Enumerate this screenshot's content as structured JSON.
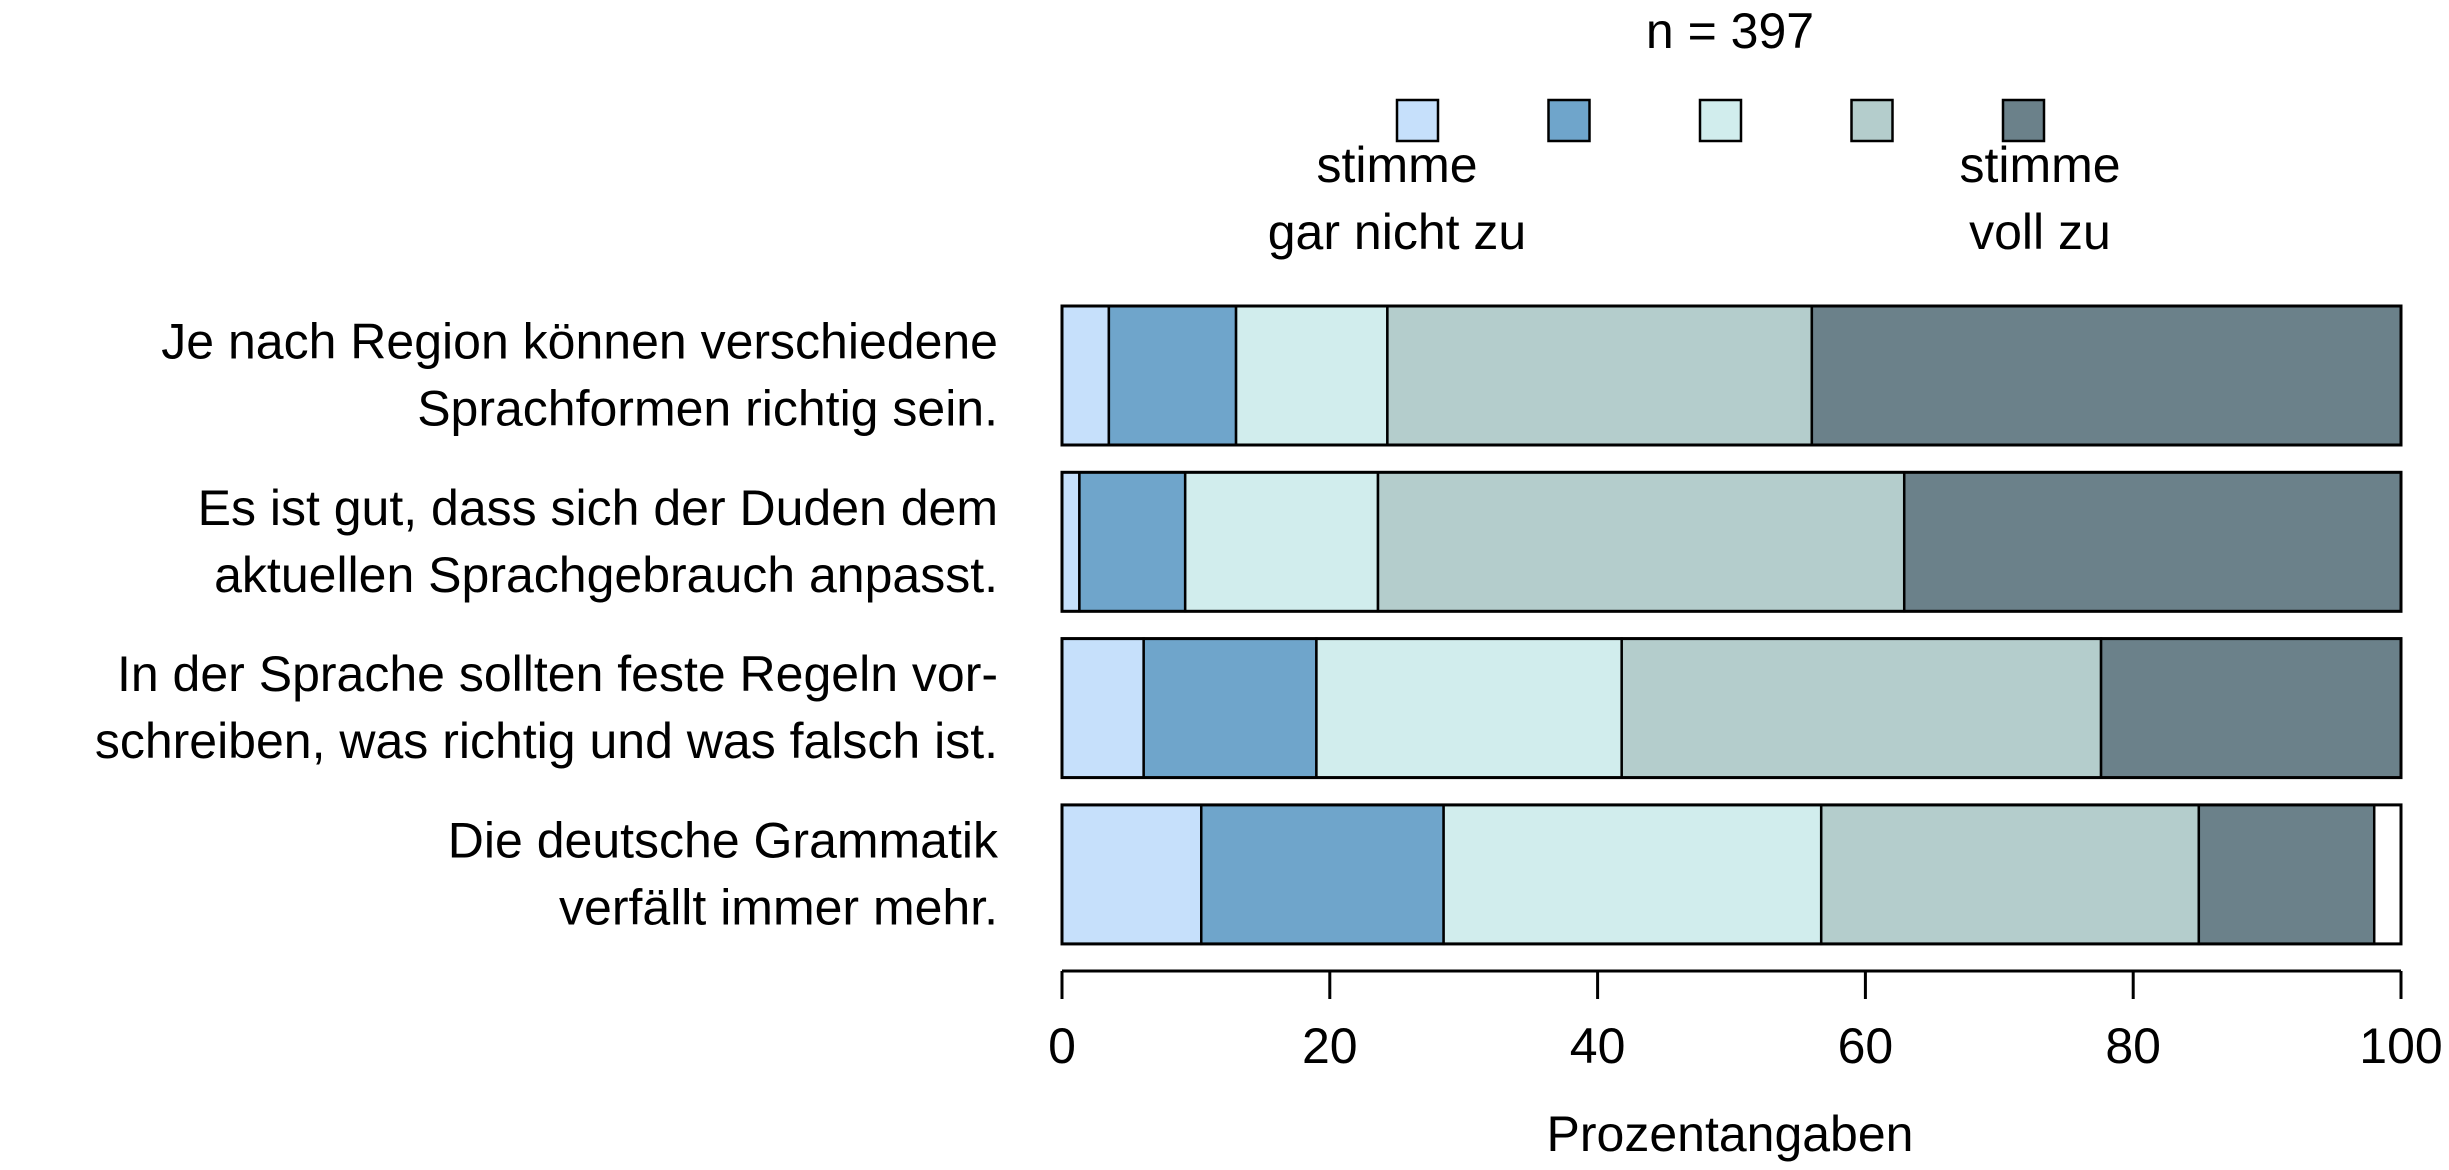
{
  "chart_data": {
    "type": "bar",
    "orientation": "horizontal",
    "stacked": true,
    "title": "n = 397",
    "xlabel": "Prozentangaben",
    "ylabel": "",
    "xlim": [
      0,
      100
    ],
    "xticks": [
      0,
      20,
      40,
      60,
      80,
      100
    ],
    "grid": false,
    "legend": {
      "placement": "top",
      "low_label": [
        "stimme",
        "gar nicht zu"
      ],
      "high_label": [
        "stimme",
        "voll zu"
      ]
    },
    "colors": [
      "#c6e0fb",
      "#6fa5cb",
      "#d1eded",
      "#b4cdcc",
      "#6b818a"
    ],
    "categories": [
      [
        "Je nach Region können verschiedene",
        "Sprachformen richtig sein."
      ],
      [
        "Es ist gut, dass sich der Duden dem",
        "aktuellen Sprachgebrauch anpasst."
      ],
      [
        "In der Sprache sollten feste Regeln vor-",
        "schreiben, was richtig und was falsch ist."
      ],
      [
        "Die deutsche Grammatik",
        "verfällt immer mehr."
      ]
    ],
    "series": [
      {
        "values": [
          3.5,
          1.3,
          6.1,
          10.4
        ]
      },
      {
        "values": [
          9.5,
          7.9,
          12.9,
          18.1
        ]
      },
      {
        "values": [
          11.3,
          14.4,
          22.8,
          28.2
        ]
      },
      {
        "values": [
          31.7,
          39.3,
          35.8,
          28.2
        ]
      },
      {
        "values": [
          44.0,
          37.1,
          22.4,
          13.1
        ]
      }
    ]
  }
}
